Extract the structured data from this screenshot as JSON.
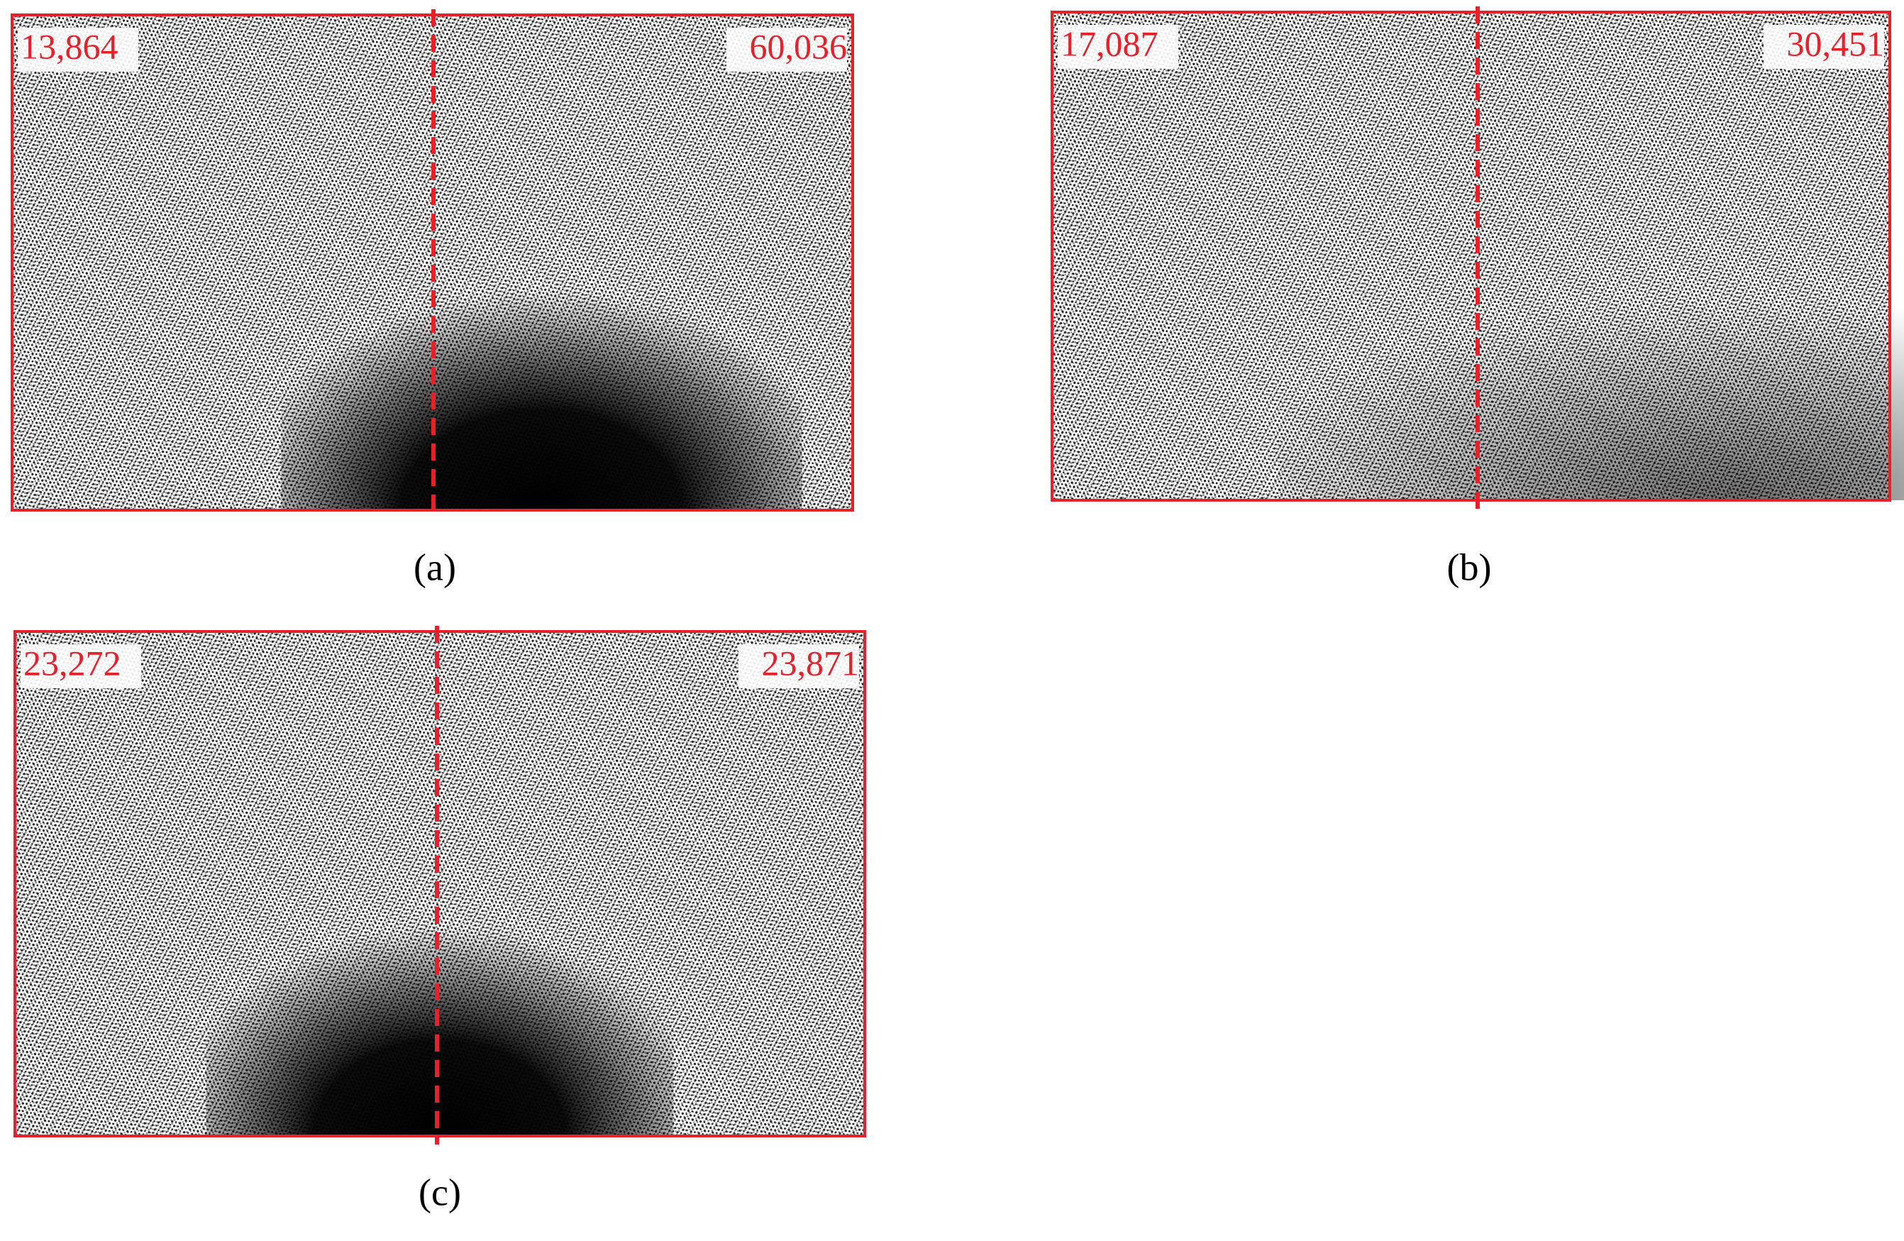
{
  "panels": [
    {
      "label": "(a)",
      "left_count": "13,864",
      "right_count": "60,036"
    },
    {
      "label": "(b)",
      "left_count": "17,087",
      "right_count": "30,451"
    },
    {
      "label": "(c)",
      "left_count": "23,272",
      "right_count": "23,871"
    }
  ]
}
